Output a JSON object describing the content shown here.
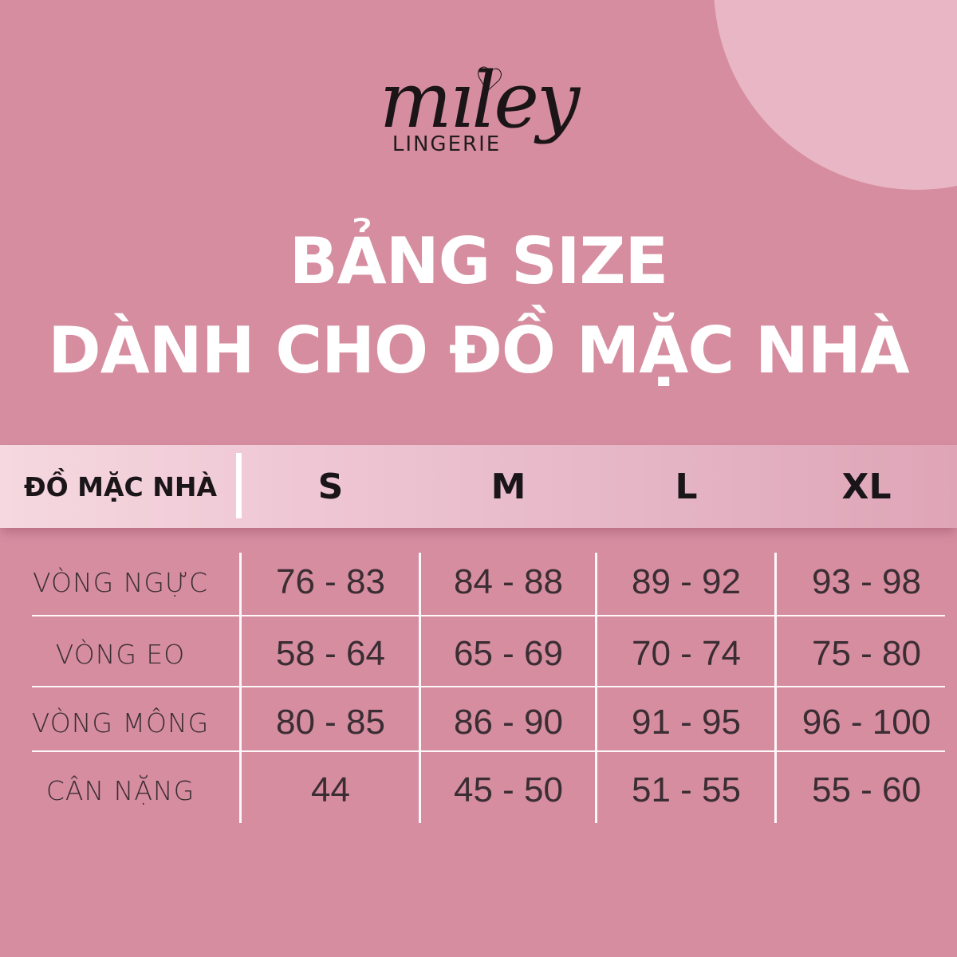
{
  "brand": {
    "name_script": "mıley",
    "subtitle": "LINGERIE",
    "heart_icon": "♡"
  },
  "title": {
    "line1": "BẢNG SIZE",
    "line2": "DÀNH CHO ĐỒ MẶC NHÀ"
  },
  "chart_data": {
    "type": "table",
    "title": "BẢNG SIZE DÀNH CHO ĐỒ MẶC NHÀ",
    "columns": [
      "ĐỒ MẶC NHÀ",
      "S",
      "M",
      "L",
      "XL"
    ],
    "rows": [
      {
        "label": "VÒNG NGỰC",
        "values": [
          "76 - 83",
          "84 - 88",
          "89 - 92",
          "93 - 98"
        ]
      },
      {
        "label": "VÒNG EO",
        "values": [
          "58 - 64",
          "65 - 69",
          "70 - 74",
          "75 - 80"
        ]
      },
      {
        "label": "VÒNG MÔNG",
        "values": [
          "80 - 85",
          "86 - 90",
          "91 - 95",
          "96 - 100"
        ]
      },
      {
        "label": "CÂN NẶNG",
        "values": [
          "44",
          "45 - 50",
          "51 - 55",
          "55 - 60"
        ]
      }
    ],
    "layout": {
      "header_divider": true,
      "grid_lines": "white",
      "units_implied": "cm / kg"
    }
  },
  "colors": {
    "background": "#d68da0",
    "decorative_circle": "#e8b6c5",
    "header_band_left": "#f5d8e0",
    "header_band_right": "#dfa5b7",
    "grid_line": "#ffffff",
    "title_text": "#ffffff",
    "header_text": "#1a1518",
    "body_text": "#3a2d33",
    "logo_text": "#1b1517"
  }
}
